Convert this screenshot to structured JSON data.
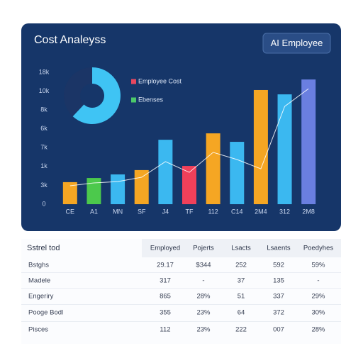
{
  "chart_data": [
    {
      "type": "bar",
      "title": "Cost Analeyss",
      "categories": [
        "CE",
        "A1",
        "MN",
        "SF",
        "J4",
        "TF",
        "112",
        "C14",
        "2M4",
        "312",
        "2M8"
      ],
      "values": [
        1.17,
        1.39,
        1.58,
        1.81,
        3.42,
        2.03,
        3.76,
        3.31,
        6.06,
        5.83,
        6.62
      ],
      "colors": [
        "#f5a623",
        "#4cc94c",
        "#3bb8f0",
        "#f5a623",
        "#3bb8f0",
        "#f0405a",
        "#f5a623",
        "#3bb8f0",
        "#f5a623",
        "#3bb8f0",
        "#6a7fe0"
      ],
      "line": {
        "values": [
          0.98,
          1.13,
          1.2,
          1.43,
          2.26,
          1.69,
          2.75,
          2.37,
          1.88,
          5.19,
          6.13
        ],
        "color": "#ffffff"
      },
      "ylim": [
        0,
        7
      ],
      "yticks": [
        0,
        {
          "value": 1,
          "label": "3k"
        },
        {
          "value": 2,
          "label": "1k"
        },
        {
          "value": 3,
          "label": "7k"
        },
        {
          "value": 4,
          "label": "6k"
        },
        {
          "value": 5,
          "label": "8k"
        },
        {
          "value": 6,
          "label": "10k"
        },
        {
          "value": 7,
          "label": "18k"
        }
      ],
      "grid": false
    },
    {
      "type": "pie",
      "labels": [
        "Employee Cost",
        "Ebenses"
      ],
      "values": [
        62,
        38
      ],
      "colors": [
        "#3fc4f4",
        "#1b3566"
      ],
      "legend_colors": [
        "#e8475f",
        "#4cc96a"
      ]
    }
  ],
  "badge": "AI Employee",
  "table": {
    "header": [
      "Sstrel tod",
      "Employed",
      "Pojerts",
      "Lsacts",
      "Lsaents",
      "Poedyhes"
    ],
    "rows": [
      [
        "Bstghs",
        "29.17",
        "$344",
        "252",
        "592",
        "59%"
      ],
      [
        "Madele",
        "317",
        "-",
        "37",
        "135",
        "-"
      ],
      [
        "Engeriry",
        "865",
        "28%",
        "51",
        "337",
        "29%"
      ],
      [
        "Pooge Bodl",
        "355",
        "23%",
        "64",
        "372",
        "30%"
      ],
      [
        "Pisces",
        "112",
        "23%",
        "222",
        "007",
        "28%"
      ]
    ]
  }
}
